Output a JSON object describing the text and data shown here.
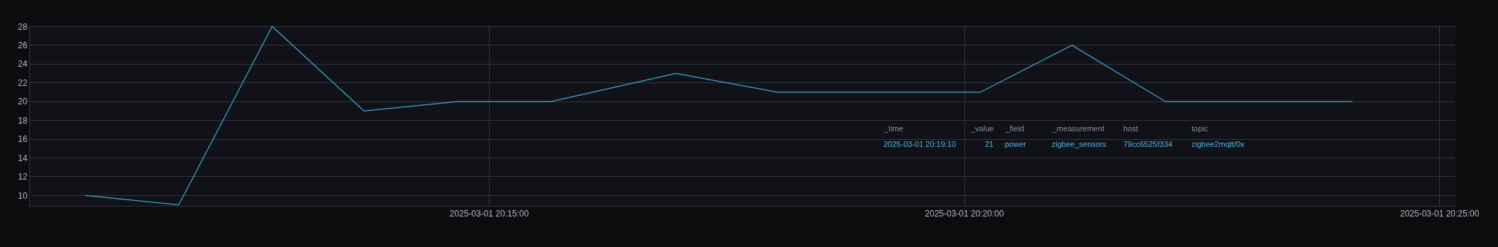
{
  "chart_data": {
    "type": "line",
    "x": [
      "2025-03-01T20:10:45",
      "2025-03-01T20:11:44",
      "2025-03-01T20:12:43",
      "2025-03-01T20:13:41",
      "2025-03-01T20:14:40",
      "2025-03-01T20:15:39",
      "2025-03-01T20:16:58",
      "2025-03-01T20:18:02",
      "2025-03-01T20:19:10",
      "2025-03-01T20:20:10",
      "2025-03-01T20:21:08",
      "2025-03-01T20:22:07",
      "2025-03-01T20:24:05"
    ],
    "series": [
      {
        "color": "#3fa9dc",
        "values": [
          10,
          9,
          28,
          19,
          20,
          20,
          23,
          21,
          21,
          21,
          26,
          20,
          20
        ]
      }
    ],
    "xlim": [
      "2025-03-01T20:10:10",
      "2025-03-01T20:25:10"
    ],
    "xticks": [
      {
        "value": "2025-03-01T20:15:00",
        "label": "2025-03-01 20:15:00"
      },
      {
        "value": "2025-03-01T20:20:00",
        "label": "2025-03-01 20:20:00"
      },
      {
        "value": "2025-03-01T20:25:00",
        "label": "2025-03-01 20:25:00"
      }
    ],
    "ylim": [
      8.9,
      28.1
    ],
    "yticks": [
      10,
      12,
      14,
      16,
      18,
      20,
      22,
      24,
      26,
      28
    ],
    "grid": true,
    "marker": "none",
    "line_style": "solid",
    "annotations": [
      "_time",
      "_value",
      "_field",
      "_measurement",
      "host",
      "topic",
      "2025-03-01 20:19:10",
      "21",
      "power",
      "zigbee_sensors",
      "79cc6525f334",
      "zigbee2mqtt/0x"
    ]
  }
}
